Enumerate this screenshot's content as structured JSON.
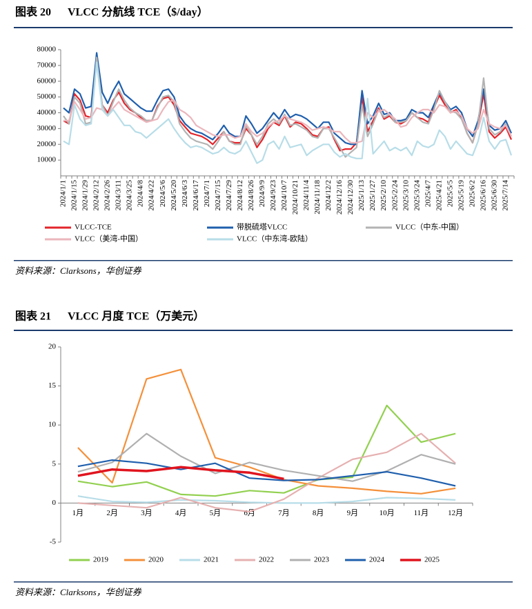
{
  "chart_data": [
    {
      "type": "line",
      "figure": "图表 20",
      "title": "VLCC 分航线 TCE（$/day）",
      "source": "资料来源：Clarksons，华创证券",
      "categories": [
        "2024/1/1",
        null,
        "2024/1/15",
        null,
        "2024/1/29",
        null,
        "2024/2/12",
        null,
        "2024/2/26",
        null,
        "2024/3/11",
        null,
        "2024/3/25",
        null,
        "2024/4/8",
        null,
        "2024/4/22",
        null,
        "2024/5/6",
        null,
        "2024/5/20",
        null,
        "2024/6/3",
        null,
        "2024/6/17",
        null,
        "2024/7/1",
        null,
        "2024/7/15",
        null,
        "2024/7/29",
        null,
        "2024/8/12",
        null,
        "2024/8/26",
        null,
        "2024/9/9",
        null,
        "2024/9/23",
        null,
        "2024/10/7",
        null,
        "2024/10/21",
        null,
        "2024/11/4",
        null,
        "2024/11/18",
        null,
        "2024/12/2",
        null,
        "2024/12/16",
        null,
        "2024/12/30",
        null,
        "2025/1/13",
        null,
        "2025/1/27",
        null,
        "2025/2/10",
        null,
        "2025/2/24",
        null,
        "2025/3/10",
        null,
        "2025/3/24",
        null,
        "2025/4/7",
        null,
        "2025/4/21",
        null,
        "2025/5/5",
        null,
        "2025/5/19",
        null,
        "2025/6/2",
        null,
        "2025/6/16",
        null,
        "2025/6/30",
        null,
        "2025/7/14",
        null
      ],
      "ylim": [
        0,
        80000
      ],
      "yticks": [
        10000,
        20000,
        30000,
        40000,
        50000,
        60000,
        70000,
        80000
      ],
      "series": [
        {
          "name": "VLCC-TCE",
          "color": "#e3242b",
          "values": [
            35000,
            33000,
            52000,
            48000,
            38000,
            37000,
            74000,
            45000,
            40000,
            48000,
            53000,
            46000,
            42000,
            40000,
            37000,
            35000,
            35000,
            44000,
            49000,
            50000,
            45000,
            35000,
            31000,
            27000,
            26000,
            25000,
            23000,
            20000,
            24000,
            28000,
            22000,
            21000,
            21000,
            30000,
            26000,
            18000,
            23000,
            30000,
            34000,
            32000,
            38000,
            31000,
            34000,
            33000,
            30000,
            26000,
            25000,
            30000,
            31000,
            23000,
            16000,
            17000,
            17000,
            21000,
            50000,
            28000,
            35000,
            43000,
            36000,
            38000,
            34000,
            33000,
            35000,
            40000,
            37000,
            36000,
            34000,
            43000,
            51000,
            45000,
            40000,
            42000,
            37000,
            27000,
            21000,
            33000,
            52000,
            28000,
            24000,
            27000,
            31000,
            23000
          ]
        },
        {
          "name": "带脱硫塔VLCC",
          "color": "#1f5fad",
          "values": [
            43000,
            40000,
            55000,
            52000,
            43000,
            44000,
            78000,
            53000,
            46000,
            54000,
            60000,
            52000,
            49000,
            46000,
            43000,
            41000,
            41000,
            48000,
            54000,
            55000,
            50000,
            38000,
            33000,
            30000,
            28000,
            27000,
            25000,
            23000,
            27000,
            32000,
            27000,
            25000,
            25000,
            38000,
            33000,
            27000,
            30000,
            35000,
            40000,
            36000,
            42000,
            37000,
            39000,
            38000,
            36000,
            33000,
            30000,
            34000,
            34000,
            27000,
            24000,
            21000,
            20000,
            20000,
            54000,
            33000,
            38000,
            46000,
            39000,
            40000,
            35000,
            35000,
            36000,
            42000,
            40000,
            40000,
            37000,
            45000,
            53000,
            47000,
            42000,
            44000,
            40000,
            30000,
            25000,
            35000,
            55000,
            32000,
            29000,
            30000,
            35000,
            27000
          ]
        },
        {
          "name": "VLCC（中东-中国）",
          "color": "#b3b3b3",
          "values": [
            38000,
            33000,
            50000,
            46000,
            33000,
            34000,
            75000,
            45000,
            38000,
            47000,
            55000,
            48000,
            43000,
            40000,
            38000,
            35000,
            35000,
            43000,
            50000,
            51000,
            47000,
            33000,
            28000,
            24000,
            22000,
            21000,
            20000,
            17000,
            22000,
            28000,
            22000,
            20000,
            20000,
            32000,
            26000,
            20000,
            25000,
            33000,
            36000,
            33000,
            39000,
            32000,
            33000,
            31000,
            29000,
            25000,
            24000,
            30000,
            30000,
            24000,
            18000,
            12000,
            15000,
            18000,
            45000,
            25000,
            33000,
            42000,
            37000,
            39000,
            34000,
            34000,
            35000,
            40000,
            37000,
            34000,
            33000,
            42000,
            54000,
            47000,
            41000,
            40000,
            36000,
            27000,
            21000,
            33000,
            62000,
            30000,
            26000,
            28000,
            33000,
            25000
          ]
        },
        {
          "name": "VLCC（美湾-中国）",
          "color": "#ebb6bc",
          "values": [
            35000,
            35000,
            47000,
            42000,
            36000,
            37000,
            43000,
            42000,
            38000,
            43000,
            47000,
            42000,
            40000,
            38000,
            36000,
            34000,
            35000,
            36000,
            42000,
            47000,
            48000,
            42000,
            40000,
            37000,
            32000,
            30000,
            28000,
            26000,
            25000,
            26000,
            26000,
            24000,
            25000,
            33000,
            28000,
            25000,
            27000,
            31000,
            34000,
            35000,
            38000,
            36000,
            35000,
            34000,
            32000,
            29000,
            30000,
            31000,
            30000,
            28000,
            28000,
            24000,
            21000,
            21000,
            22000,
            40000,
            37000,
            41000,
            42000,
            39000,
            36000,
            31000,
            32000,
            37000,
            40000,
            42000,
            42000,
            40000,
            45000,
            44000,
            40000,
            41000,
            38000,
            30000,
            27000,
            30000,
            42000,
            33000,
            31000,
            30000,
            32000,
            25000
          ]
        },
        {
          "name": "VLCC（中东湾-欧陆）",
          "color": "#b7dde8",
          "values": [
            22000,
            20000,
            45000,
            36000,
            32000,
            33000,
            72000,
            42000,
            38000,
            42000,
            37000,
            32000,
            32000,
            28000,
            27000,
            24000,
            27000,
            30000,
            33000,
            36000,
            30000,
            25000,
            21000,
            18000,
            19000,
            18000,
            16000,
            14000,
            15000,
            18000,
            15000,
            14000,
            16000,
            22000,
            15000,
            8000,
            10000,
            20000,
            22000,
            17000,
            25000,
            18000,
            19000,
            20000,
            13000,
            16000,
            18000,
            20000,
            20000,
            15000,
            12000,
            14000,
            12000,
            11000,
            11000,
            49000,
            14000,
            18000,
            22000,
            16000,
            18000,
            16000,
            18000,
            13000,
            22000,
            19000,
            18000,
            20000,
            29000,
            25000,
            17000,
            22000,
            18000,
            14000,
            13000,
            22000,
            37000,
            22000,
            17000,
            22000,
            23000,
            13000
          ]
        }
      ]
    },
    {
      "type": "line",
      "figure": "图表 21",
      "title": "VLCC 月度 TCE（万美元）",
      "source": "资料来源：Clarksons，华创证券",
      "categories": [
        "1月",
        "2月",
        "3月",
        "4月",
        "5月",
        "6月",
        "7月",
        "8月",
        "9月",
        "10月",
        "11月",
        "12月"
      ],
      "ylim": [
        -5,
        20
      ],
      "yticks": [
        -5,
        0,
        5,
        10,
        15,
        20
      ],
      "series": [
        {
          "name": "2019",
          "color": "#92d050",
          "values": [
            2.8,
            2.1,
            2.7,
            1.1,
            0.9,
            1.6,
            1.3,
            3.0,
            3.3,
            12.5,
            7.8,
            8.9
          ]
        },
        {
          "name": "2020",
          "color": "#f4903a",
          "values": [
            7.1,
            2.6,
            15.9,
            17.1,
            5.8,
            4.6,
            3.0,
            2.2,
            1.9,
            1.5,
            1.2,
            1.9
          ]
        },
        {
          "name": "2021",
          "color": "#b7dde8",
          "values": [
            0.9,
            0.2,
            0.1,
            0.4,
            0.3,
            0.1,
            0.0,
            0.0,
            0.2,
            0.7,
            0.6,
            0.4
          ]
        },
        {
          "name": "2022",
          "color": "#e6b0b0",
          "values": [
            0.0,
            -0.3,
            -0.6,
            0.7,
            -0.6,
            -1.1,
            0.5,
            3.2,
            5.6,
            6.5,
            8.9,
            5.1
          ]
        },
        {
          "name": "2023",
          "color": "#b0b0b0",
          "values": [
            4.0,
            5.2,
            8.9,
            6.0,
            3.8,
            5.2,
            4.2,
            3.5,
            2.8,
            4.1,
            6.2,
            5.0
          ]
        },
        {
          "name": "2024",
          "color": "#1f5fad",
          "values": [
            4.7,
            5.5,
            5.1,
            4.3,
            5.1,
            3.2,
            2.9,
            3.0,
            3.5,
            4.0,
            3.2,
            2.2
          ]
        },
        {
          "name": "2025",
          "color": "#e0141e",
          "width": 3.5,
          "values": [
            3.5,
            4.3,
            4.1,
            4.6,
            4.2,
            3.9,
            3.1,
            null,
            null,
            null,
            null,
            null
          ]
        }
      ]
    }
  ]
}
